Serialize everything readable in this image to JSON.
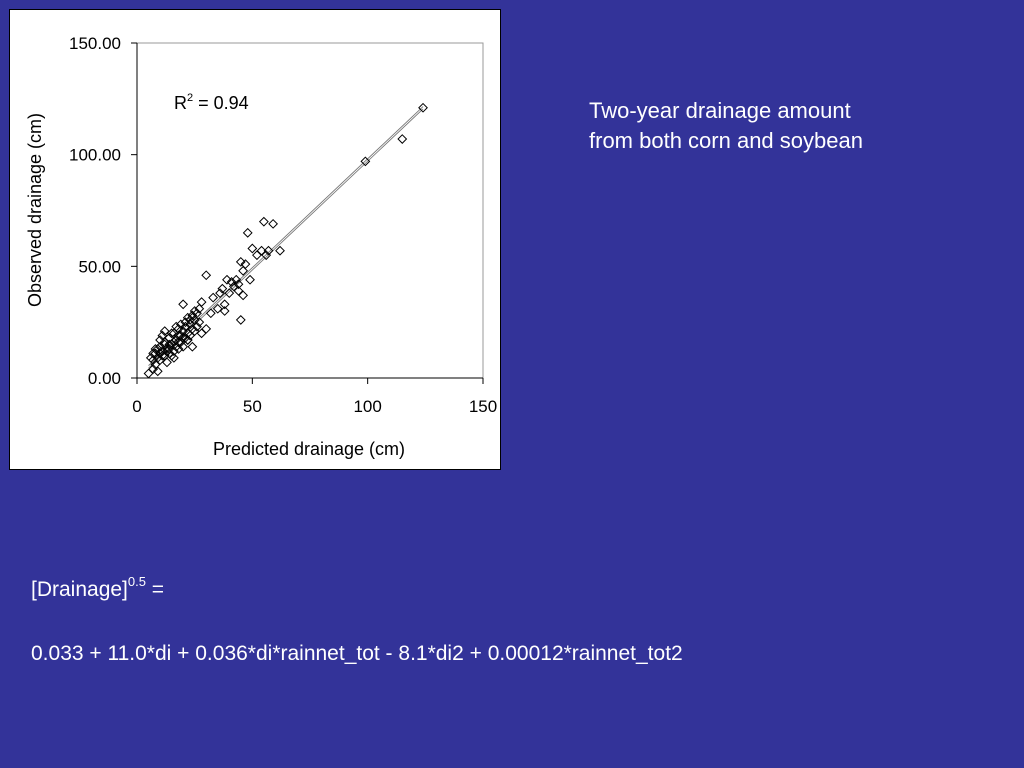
{
  "caption": {
    "line1": "Two-year drainage amount",
    "line2": "from both corn and soybean"
  },
  "formula": {
    "lhs_base": "[Drainage]",
    "lhs_exponent": "0.5",
    "lhs_equals": " =",
    "rhs": "0.033 + 11.0*di + 0.036*di*rainnet_tot - 8.1*di2 + 0.00012*rainnet_tot2"
  },
  "chart_data": {
    "type": "scatter",
    "xlabel": "Predicted drainage (cm)",
    "ylabel": "Observed drainage (cm)",
    "xlim": [
      0,
      150
    ],
    "ylim": [
      0,
      150
    ],
    "x_ticks": [
      "0",
      "50",
      "100",
      "150"
    ],
    "y_ticks": [
      "0.00",
      "50.00",
      "100.00",
      "150.00"
    ],
    "grid": false,
    "annotation": {
      "base": "R",
      "sup": "2",
      "rest": " = 0.94"
    },
    "marker": "diamond-open",
    "trendline": {
      "x": [
        5,
        124
      ],
      "y": [
        5,
        121
      ]
    },
    "points": [
      [
        5,
        2
      ],
      [
        6,
        9
      ],
      [
        7,
        4
      ],
      [
        7,
        11
      ],
      [
        8,
        6
      ],
      [
        8,
        13
      ],
      [
        9,
        9
      ],
      [
        9,
        3
      ],
      [
        10,
        14
      ],
      [
        10,
        8
      ],
      [
        11,
        19
      ],
      [
        11,
        12
      ],
      [
        12,
        10
      ],
      [
        12,
        16
      ],
      [
        13,
        7
      ],
      [
        13,
        13
      ],
      [
        14,
        18
      ],
      [
        14,
        11
      ],
      [
        15,
        15
      ],
      [
        15,
        20
      ],
      [
        16,
        12
      ],
      [
        16,
        9
      ],
      [
        17,
        17
      ],
      [
        17,
        14
      ],
      [
        18,
        22
      ],
      [
        18,
        13
      ],
      [
        19,
        16
      ],
      [
        19,
        19
      ],
      [
        20,
        21
      ],
      [
        20,
        14
      ],
      [
        21,
        18
      ],
      [
        21,
        25
      ],
      [
        22,
        20
      ],
      [
        22,
        17
      ],
      [
        23,
        24
      ],
      [
        23,
        19
      ],
      [
        24,
        22
      ],
      [
        24,
        27
      ],
      [
        25,
        26
      ],
      [
        25,
        21
      ],
      [
        26,
        29
      ],
      [
        26,
        23
      ],
      [
        27,
        31
      ],
      [
        27,
        25
      ],
      [
        20,
        33
      ],
      [
        22,
        17
      ],
      [
        24,
        14
      ],
      [
        9,
        13
      ],
      [
        10,
        17
      ],
      [
        12,
        21
      ],
      [
        14,
        15
      ],
      [
        16,
        20
      ],
      [
        17,
        23
      ],
      [
        18,
        19
      ],
      [
        19,
        24
      ],
      [
        21,
        23
      ],
      [
        22,
        27
      ],
      [
        23,
        26
      ],
      [
        24,
        28
      ],
      [
        25,
        30
      ],
      [
        28,
        34
      ],
      [
        28,
        20
      ],
      [
        30,
        22
      ],
      [
        30,
        46
      ],
      [
        32,
        29
      ],
      [
        33,
        36
      ],
      [
        35,
        31
      ],
      [
        36,
        38
      ],
      [
        37,
        40
      ],
      [
        38,
        33
      ],
      [
        39,
        44
      ],
      [
        40,
        38
      ],
      [
        41,
        43
      ],
      [
        42,
        41
      ],
      [
        43,
        44
      ],
      [
        44,
        39
      ],
      [
        45,
        52
      ],
      [
        45,
        26
      ],
      [
        46,
        48
      ],
      [
        47,
        51
      ],
      [
        48,
        65
      ],
      [
        49,
        44
      ],
      [
        50,
        58
      ],
      [
        52,
        55
      ],
      [
        54,
        57
      ],
      [
        55,
        70
      ],
      [
        56,
        55
      ],
      [
        57,
        57
      ],
      [
        59,
        69
      ],
      [
        62,
        57
      ],
      [
        46,
        37
      ],
      [
        44,
        42
      ],
      [
        38,
        30
      ],
      [
        8,
        11
      ],
      [
        11,
        10
      ],
      [
        13,
        12
      ],
      [
        15,
        10
      ],
      [
        7,
        8
      ],
      [
        10,
        11
      ],
      [
        12,
        15
      ],
      [
        14,
        13
      ],
      [
        16,
        16
      ],
      [
        18,
        16
      ],
      [
        20,
        18
      ],
      [
        99,
        97
      ],
      [
        115,
        107
      ],
      [
        124,
        121
      ]
    ]
  }
}
